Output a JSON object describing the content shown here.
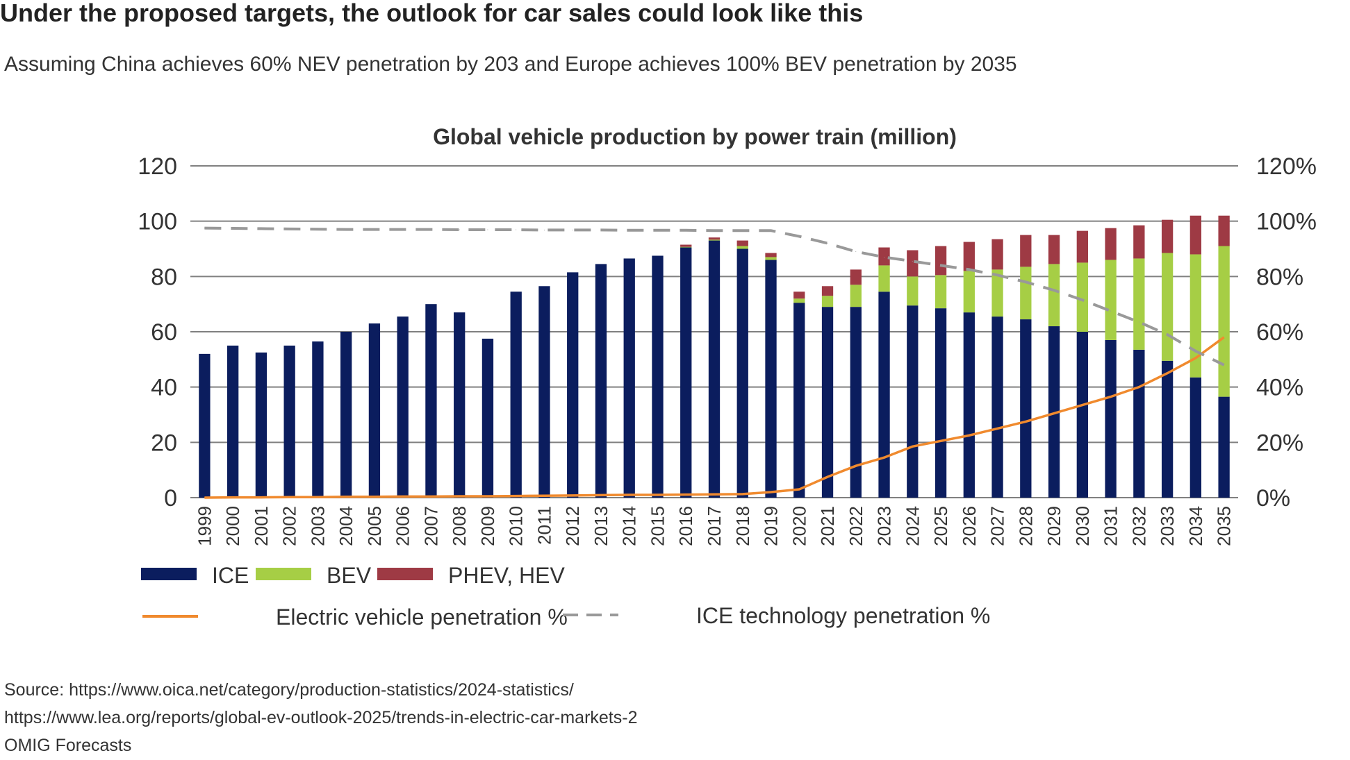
{
  "header": {
    "title": "Under the proposed targets, the outlook for car sales could look like this",
    "subtitle": "Assuming China achieves 60% NEV penetration by 203 and Europe achieves 100% BEV penetration by 2035"
  },
  "sources": [
    "Source: https://www.oica.net/category/production-statistics/2024-statistics/",
    "https://www.lea.org/reports/global-ev-outlook-2025/trends-in-electric-car-markets-2",
    "OMIG Forecasts"
  ],
  "chart_data": {
    "type": "bar",
    "stacked": true,
    "title": "Global vehicle production by power train (million)",
    "xlabel": "",
    "ylabel": "",
    "ylim": [
      0,
      120
    ],
    "y2lim": [
      0,
      120
    ],
    "yticks": [
      "0",
      "20",
      "40",
      "60",
      "80",
      "100",
      "120"
    ],
    "y2ticks": [
      "0%",
      "20%",
      "40%",
      "60%",
      "80%",
      "100%",
      "120%"
    ],
    "grid": true,
    "legend_position": "bottom",
    "categories": [
      "1999",
      "2000",
      "2001",
      "2002",
      "2003",
      "2004",
      "2005",
      "2006",
      "2007",
      "2008",
      "2009",
      "2010",
      "2011",
      "2012",
      "2013",
      "2014",
      "2015",
      "2016",
      "2017",
      "2018",
      "2019",
      "2020",
      "2021",
      "2022",
      "2023",
      "2024",
      "2025",
      "2026",
      "2027",
      "2028",
      "2029",
      "2030",
      "2031",
      "2032",
      "2033",
      "2034",
      "2035"
    ],
    "series": [
      {
        "name": "ICE",
        "type": "bar",
        "color": "#0b1d5e",
        "axis": "left",
        "values": [
          52,
          55,
          52.5,
          55,
          56.5,
          60,
          63,
          65.5,
          70,
          67,
          57.5,
          74.5,
          76.5,
          81.5,
          84.5,
          86.5,
          87.5,
          90.5,
          93,
          90,
          86,
          70.5,
          69,
          69,
          74.5,
          69.5,
          68.5,
          67,
          65.5,
          64.5,
          62,
          60,
          57,
          53.5,
          49.5,
          43.5,
          36.5
        ]
      },
      {
        "name": "BEV",
        "type": "bar",
        "color": "#a6ce45",
        "axis": "left",
        "values": [
          0,
          0,
          0,
          0,
          0,
          0,
          0,
          0,
          0,
          0,
          0,
          0,
          0,
          0,
          0,
          0,
          0,
          0.2,
          0.3,
          1,
          1,
          1.5,
          4,
          8,
          9.5,
          10.5,
          12,
          15,
          17,
          19,
          22.5,
          25,
          29,
          33,
          39,
          44.5,
          54.5
        ]
      },
      {
        "name": "PHEV, HEV",
        "type": "bar",
        "color": "#9e3a44",
        "axis": "left",
        "values": [
          0,
          0,
          0,
          0,
          0,
          0,
          0,
          0,
          0,
          0,
          0,
          0,
          0,
          0,
          0,
          0,
          0,
          0.8,
          0.8,
          2,
          1.5,
          2.5,
          3.5,
          5.5,
          6.5,
          9.5,
          10.5,
          10.5,
          11,
          11.5,
          10.5,
          11.5,
          11.5,
          12,
          12,
          14,
          11
        ]
      },
      {
        "name": "Electric vehicle penetration %",
        "type": "line",
        "color": "#f08a2e",
        "axis": "right",
        "values": [
          0,
          0.1,
          0.1,
          0.2,
          0.2,
          0.3,
          0.3,
          0.4,
          0.4,
          0.5,
          0.5,
          0.6,
          0.7,
          0.8,
          0.9,
          1,
          1,
          1.1,
          1.2,
          1.3,
          2,
          3,
          7.5,
          11.5,
          14.5,
          18.5,
          20.5,
          22.5,
          25,
          27.5,
          30.5,
          33.5,
          36.5,
          40,
          45,
          50.5,
          58
        ]
      },
      {
        "name": "ICE technology penetration %",
        "type": "line",
        "dashed": true,
        "color": "#999999",
        "axis": "right",
        "values": [
          97.5,
          97.4,
          97.3,
          97.2,
          97.1,
          97,
          97,
          97,
          97,
          96.9,
          96.9,
          96.9,
          96.8,
          96.8,
          96.8,
          96.7,
          96.7,
          96.7,
          96.6,
          96.6,
          96.6,
          94.5,
          92,
          89,
          87,
          85.5,
          84,
          82.5,
          80.5,
          78,
          75,
          71.5,
          67.5,
          63.5,
          59,
          53,
          48
        ]
      }
    ]
  }
}
